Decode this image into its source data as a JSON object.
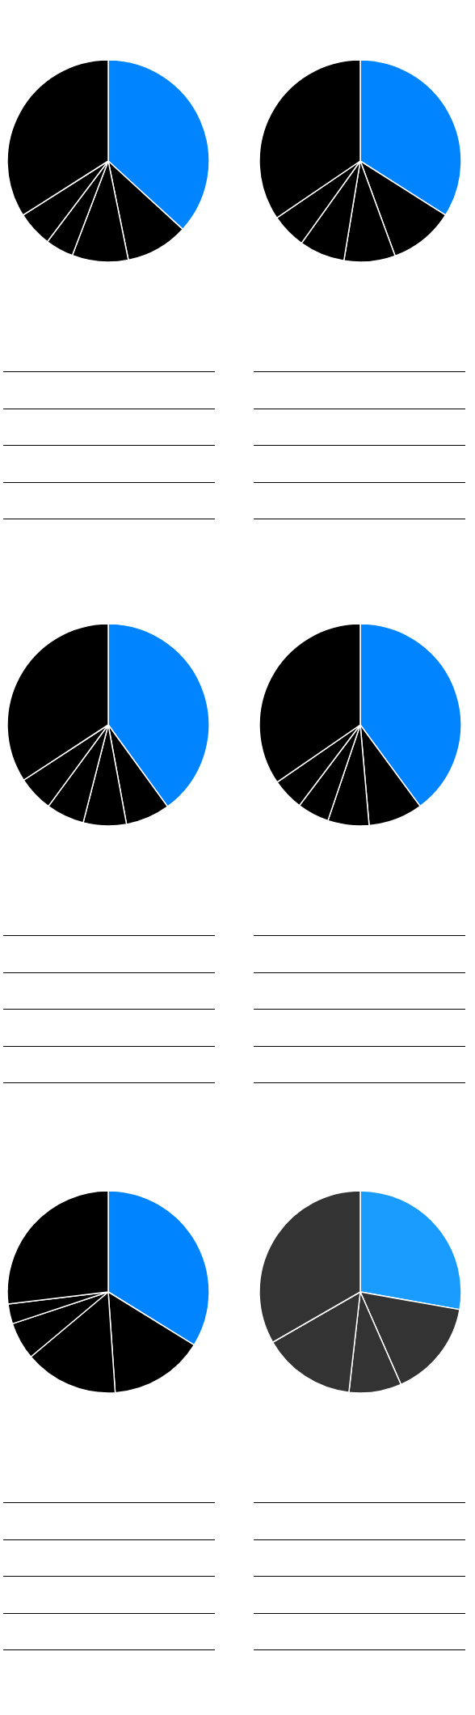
{
  "chart_data": [
    {
      "type": "pie",
      "categories": [
        null,
        null,
        null,
        null,
        null,
        null
      ],
      "values": [
        36.8,
        10,
        9,
        4.5,
        5.7,
        34
      ],
      "colors": [
        "#0084ff",
        "#000000",
        "#000000",
        "#000000",
        "#000000",
        "#000000"
      ]
    },
    {
      "type": "pie",
      "categories": [
        null,
        null,
        null,
        null,
        null,
        null
      ],
      "values": [
        34,
        10.4,
        8.2,
        7.3,
        5.6,
        34.5
      ],
      "colors": [
        "#0084ff",
        "#000000",
        "#000000",
        "#000000",
        "#000000",
        "#000000"
      ]
    },
    {
      "type": "pie",
      "categories": [
        null,
        null,
        null,
        null,
        null,
        null
      ],
      "values": [
        40,
        7.1,
        6.9,
        6.1,
        5.7,
        34.2
      ],
      "colors": [
        "#0084ff",
        "#000000",
        "#000000",
        "#000000",
        "#000000",
        "#000000"
      ]
    },
    {
      "type": "pie",
      "categories": [
        null,
        null,
        null,
        null,
        null,
        null
      ],
      "values": [
        39.9,
        8.7,
        6.6,
        5.1,
        5.1,
        34.6
      ],
      "colors": [
        "#0084ff",
        "#000000",
        "#000000",
        "#000000",
        "#000000",
        "#000000"
      ]
    },
    {
      "type": "pie",
      "categories": [
        null,
        null,
        null,
        null,
        null,
        null
      ],
      "values": [
        33.8,
        15.1,
        15,
        6,
        3.2,
        26.9
      ],
      "colors": [
        "#0084ff",
        "#000000",
        "#000000",
        "#000000",
        "#000000",
        "#000000"
      ]
    },
    {
      "type": "pie",
      "categories": [
        null,
        null,
        null,
        null,
        null
      ],
      "values": [
        27.8,
        15.6,
        8.4,
        14.9,
        33.3
      ],
      "colors": [
        "#1a9cff",
        "#333333",
        "#333333",
        "#333333",
        "#333333"
      ]
    }
  ]
}
